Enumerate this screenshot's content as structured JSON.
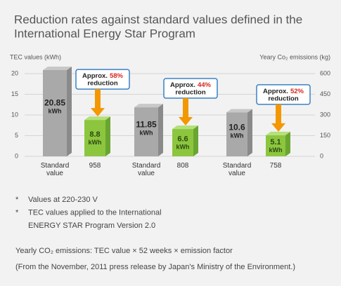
{
  "chart_data": {
    "type": "bar",
    "title": [
      "Reduction rates against standard values defined in the",
      "International Energy Star Program"
    ],
    "y_axis_label": "TEC values (kWh)",
    "y2_axis_label": "Yeary Co₂ emissions (kg)",
    "categories": [
      "Standard value",
      "958",
      "Standard value",
      "808",
      "Standard value",
      "758"
    ],
    "values": [
      20.85,
      8.8,
      11.85,
      6.6,
      10.6,
      5.1
    ],
    "value_labels": [
      "20.85 kWh",
      "8.8 kWh",
      "11.85 kWh",
      "6.6 kWh",
      "10.6 kWh",
      "5.1 kWh"
    ],
    "colors": [
      "#a9a9a9",
      "#8cc63f",
      "#a9a9a9",
      "#8cc63f",
      "#a9a9a9",
      "#8cc63f"
    ],
    "ylim": [
      0,
      20
    ],
    "yticks": [
      0,
      5,
      10,
      15,
      20
    ],
    "y2lim": [
      0,
      600
    ],
    "y2ticks": [
      0,
      150,
      300,
      450,
      600
    ],
    "grid": true,
    "annotations": [
      {
        "prefix": "Approx.",
        "percent": "58%",
        "suffix": "reduction"
      },
      {
        "prefix": "Approx.",
        "percent": "44%",
        "suffix": "reduction"
      },
      {
        "prefix": "Approx.",
        "percent": "52%",
        "suffix": "reduction"
      }
    ]
  },
  "notes": [
    {
      "marker": "*",
      "text": [
        "Values at 220-230 V"
      ]
    },
    {
      "marker": "*",
      "text": [
        "TEC values applied to the International",
        "ENERGY STAR Program Version 2.0"
      ]
    }
  ],
  "formula": "Yearly CO₂ emissions: TEC value × 52 weeks × emission factor",
  "source": "(From the November, 2011 press release by Japan's Ministry of the Environment.)"
}
